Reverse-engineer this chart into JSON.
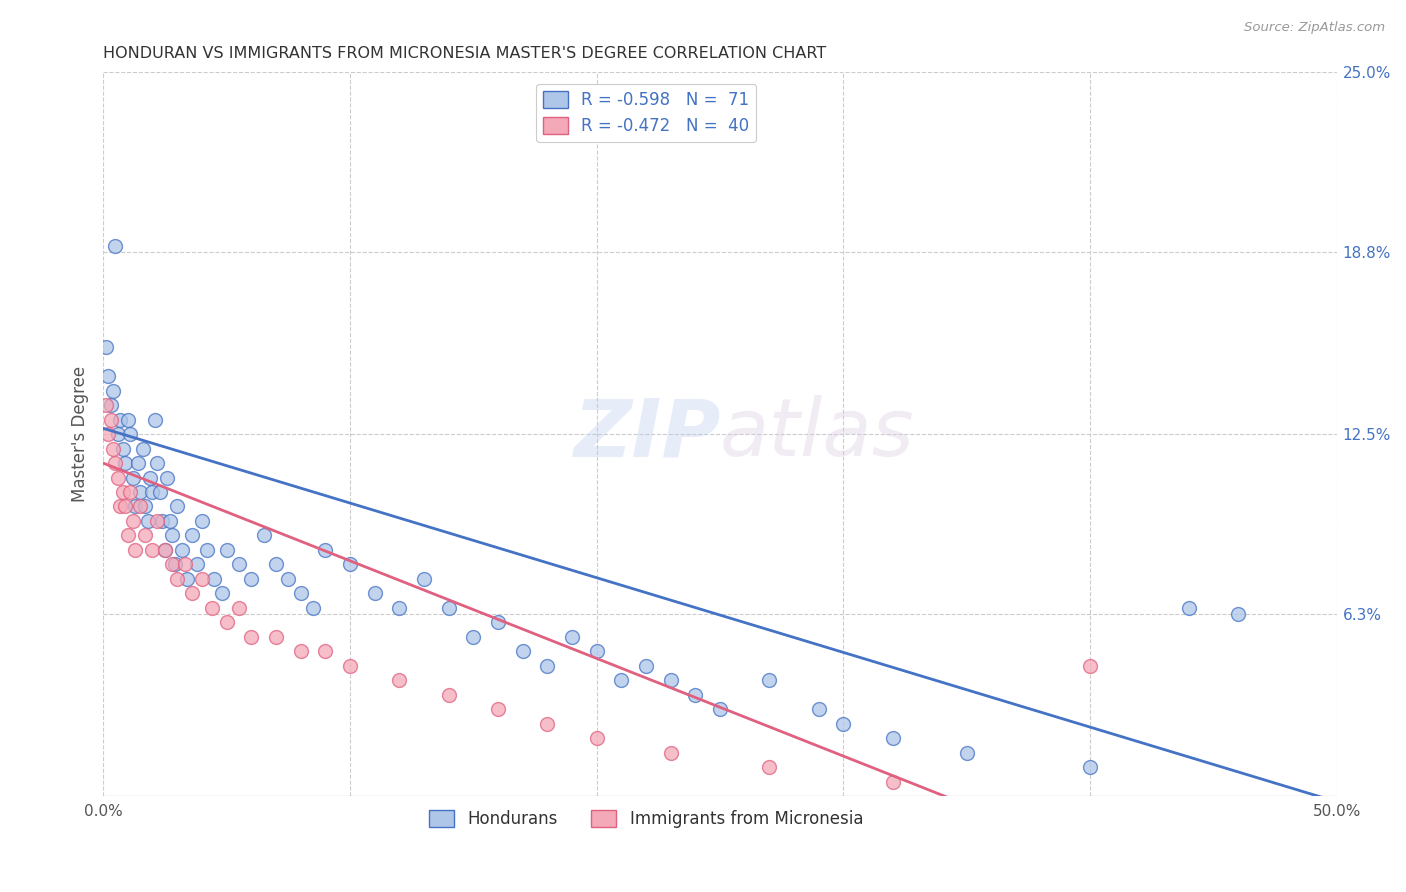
{
  "title": "HONDURAN VS IMMIGRANTS FROM MICRONESIA MASTER'S DEGREE CORRELATION CHART",
  "source": "Source: ZipAtlas.com",
  "ylabel": "Master's Degree",
  "xlim": [
    0.0,
    0.5
  ],
  "ylim": [
    0.0,
    0.25
  ],
  "xticks": [
    0.0,
    0.1,
    0.2,
    0.3,
    0.4,
    0.5
  ],
  "ytick_labels_right": [
    "25.0%",
    "18.8%",
    "12.5%",
    "6.3%",
    ""
  ],
  "yticks_right": [
    0.25,
    0.188,
    0.125,
    0.063,
    0.0
  ],
  "grid_color": "#cccccc",
  "background_color": "#ffffff",
  "hondurans_color": "#aec6e8",
  "micronesia_color": "#f4a9b8",
  "hondurans_line_color": "#4472c4",
  "micronesia_line_color": "#e06080",
  "watermark": "ZIPatlas",
  "R1_text": "R = -0.598",
  "N1_text": "N =  71",
  "R2_text": "R = -0.472",
  "N2_text": "N =  40",
  "hondurans_x": [
    0.001,
    0.002,
    0.003,
    0.004,
    0.005,
    0.006,
    0.007,
    0.008,
    0.009,
    0.01,
    0.011,
    0.012,
    0.013,
    0.014,
    0.015,
    0.016,
    0.017,
    0.018,
    0.019,
    0.02,
    0.021,
    0.022,
    0.023,
    0.024,
    0.025,
    0.026,
    0.027,
    0.028,
    0.029,
    0.03,
    0.032,
    0.034,
    0.036,
    0.038,
    0.04,
    0.042,
    0.045,
    0.048,
    0.05,
    0.055,
    0.06,
    0.065,
    0.07,
    0.075,
    0.08,
    0.085,
    0.09,
    0.1,
    0.11,
    0.12,
    0.13,
    0.14,
    0.15,
    0.16,
    0.17,
    0.18,
    0.19,
    0.2,
    0.21,
    0.22,
    0.23,
    0.24,
    0.25,
    0.27,
    0.29,
    0.3,
    0.32,
    0.35,
    0.4,
    0.44,
    0.46
  ],
  "hondurans_y": [
    0.155,
    0.145,
    0.135,
    0.14,
    0.19,
    0.125,
    0.13,
    0.12,
    0.115,
    0.13,
    0.125,
    0.11,
    0.1,
    0.115,
    0.105,
    0.12,
    0.1,
    0.095,
    0.11,
    0.105,
    0.13,
    0.115,
    0.105,
    0.095,
    0.085,
    0.11,
    0.095,
    0.09,
    0.08,
    0.1,
    0.085,
    0.075,
    0.09,
    0.08,
    0.095,
    0.085,
    0.075,
    0.07,
    0.085,
    0.08,
    0.075,
    0.09,
    0.08,
    0.075,
    0.07,
    0.065,
    0.085,
    0.08,
    0.07,
    0.065,
    0.075,
    0.065,
    0.055,
    0.06,
    0.05,
    0.045,
    0.055,
    0.05,
    0.04,
    0.045,
    0.04,
    0.035,
    0.03,
    0.04,
    0.03,
    0.025,
    0.02,
    0.015,
    0.01,
    0.065,
    0.063
  ],
  "micronesia_x": [
    0.001,
    0.002,
    0.003,
    0.004,
    0.005,
    0.006,
    0.007,
    0.008,
    0.009,
    0.01,
    0.011,
    0.012,
    0.013,
    0.015,
    0.017,
    0.02,
    0.022,
    0.025,
    0.028,
    0.03,
    0.033,
    0.036,
    0.04,
    0.044,
    0.05,
    0.055,
    0.06,
    0.07,
    0.08,
    0.09,
    0.1,
    0.12,
    0.14,
    0.16,
    0.18,
    0.2,
    0.23,
    0.27,
    0.32,
    0.4
  ],
  "micronesia_y": [
    0.135,
    0.125,
    0.13,
    0.12,
    0.115,
    0.11,
    0.1,
    0.105,
    0.1,
    0.09,
    0.105,
    0.095,
    0.085,
    0.1,
    0.09,
    0.085,
    0.095,
    0.085,
    0.08,
    0.075,
    0.08,
    0.07,
    0.075,
    0.065,
    0.06,
    0.065,
    0.055,
    0.055,
    0.05,
    0.05,
    0.045,
    0.04,
    0.035,
    0.03,
    0.025,
    0.02,
    0.015,
    0.01,
    0.005,
    0.045
  ]
}
